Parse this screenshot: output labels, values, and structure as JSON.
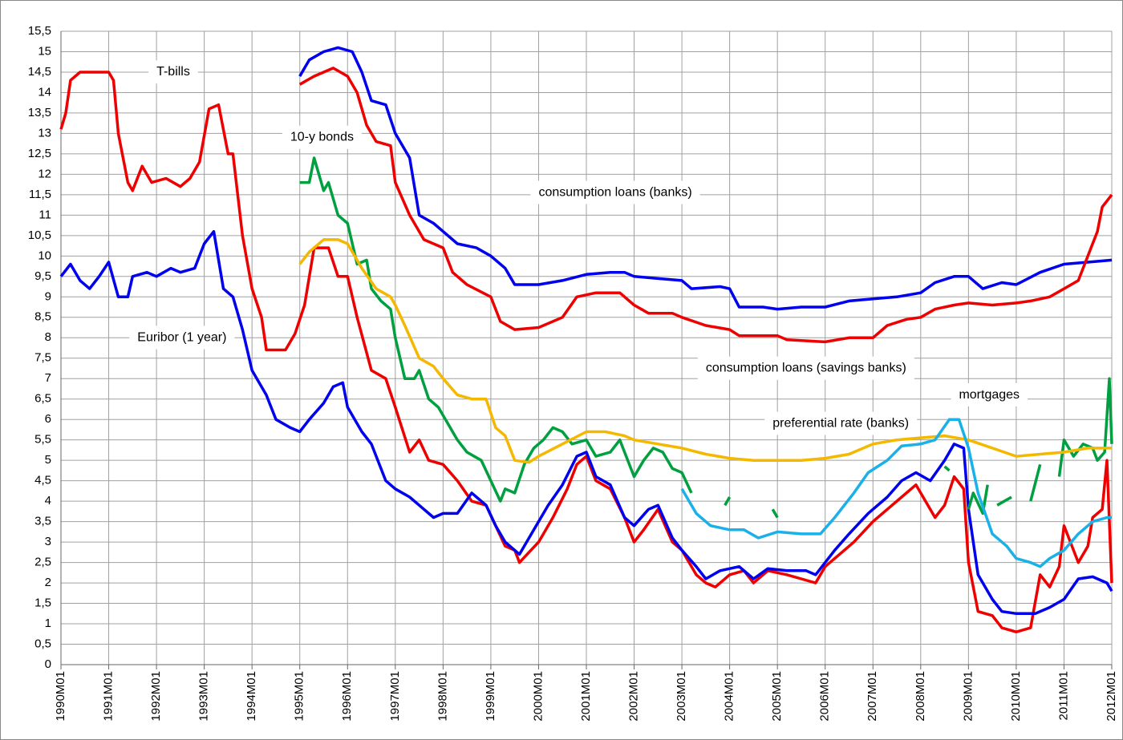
{
  "chart_data": {
    "type": "line",
    "grid": true,
    "ylim": [
      0,
      15.5
    ],
    "yticks": [
      0,
      {
        "value": 0.5,
        "label": "0,5"
      },
      1,
      {
        "value": 1.5,
        "label": "1,5"
      },
      2,
      {
        "value": 2.5,
        "label": "2,5"
      },
      3,
      {
        "value": 3.5,
        "label": "3,5"
      },
      4,
      {
        "value": 4.5,
        "label": "4,5"
      },
      5,
      {
        "value": 5.5,
        "label": "5,5"
      },
      6,
      {
        "value": 6.5,
        "label": "6,5"
      },
      7,
      {
        "value": 7.5,
        "label": "7,5"
      },
      8,
      {
        "value": 8.5,
        "label": "8,5"
      },
      9,
      {
        "value": 9.5,
        "label": "9,5"
      },
      10,
      {
        "value": 10.5,
        "label": "10,5"
      },
      11,
      {
        "value": 11.5,
        "label": "11,5"
      },
      12,
      {
        "value": 12.5,
        "label": "12,5"
      },
      13,
      {
        "value": 13.5,
        "label": "13,5"
      },
      14,
      {
        "value": 14.5,
        "label": "14,5"
      },
      15,
      {
        "value": 15.5,
        "label": "15,5"
      }
    ],
    "xlim": [
      1990,
      2012
    ],
    "xticks": [
      {
        "value": 1990,
        "label": "1990M01"
      },
      {
        "value": 1991,
        "label": "1991M01"
      },
      {
        "value": 1992,
        "label": "1992M01"
      },
      {
        "value": 1993,
        "label": "1993M01"
      },
      {
        "value": 1994,
        "label": "1994M01"
      },
      {
        "value": 1995,
        "label": "1995M01"
      },
      {
        "value": 1996,
        "label": "1996M01"
      },
      {
        "value": 1997,
        "label": "1997M01"
      },
      {
        "value": 1998,
        "label": "1998M01"
      },
      {
        "value": 1999,
        "label": "1999M01"
      },
      {
        "value": 2000,
        "label": "2000M01"
      },
      {
        "value": 2001,
        "label": "2001M01"
      },
      {
        "value": 2002,
        "label": "2002M01"
      },
      {
        "value": 2003,
        "label": "2003M01"
      },
      {
        "value": 2004,
        "label": "2004M01"
      },
      {
        "value": 2005,
        "label": "2005M01"
      },
      {
        "value": 2006,
        "label": "2006M01"
      },
      {
        "value": 2007,
        "label": "2007M01"
      },
      {
        "value": 2008,
        "label": "2008M01"
      },
      {
        "value": 2009,
        "label": "2009M01"
      },
      {
        "value": 2010,
        "label": "2010M01"
      },
      {
        "value": 2011,
        "label": "2011M01"
      },
      {
        "value": 2012,
        "label": "2012M01"
      }
    ],
    "annotations": [
      {
        "text": "T-bills",
        "x": 1992,
        "y": 14.5
      },
      {
        "text": "10-y bonds",
        "x": 1994.8,
        "y": 12.9
      },
      {
        "text": "consumption loans (banks)",
        "x": 2000,
        "y": 11.55
      },
      {
        "text": "Euribor (1 year)",
        "x": 1991.6,
        "y": 8.0
      },
      {
        "text": "consumption loans (savings banks)",
        "x": 2003.5,
        "y": 7.25
      },
      {
        "text": "mortgages",
        "x": 2008.8,
        "y": 6.6
      },
      {
        "text": "preferential rate (banks)",
        "x": 2004.9,
        "y": 5.9
      }
    ],
    "series": [
      {
        "color": "#0000ee",
        "x": [
          1995.0,
          1995.2,
          1995.5,
          1995.8,
          1996.1,
          1996.3,
          1996.5,
          1996.8,
          1997.0,
          1997.3,
          1997.5,
          1997.8,
          1998.0,
          1998.3,
          1998.7,
          1999.0,
          1999.3,
          1999.5,
          2000.0,
          2000.5,
          2001.0,
          2001.5,
          2001.8,
          2002.0,
          2002.5,
          2003.0,
          2003.2,
          2003.8,
          2004.0,
          2004.2,
          2004.7,
          2005.0,
          2005.5,
          2006.0,
          2006.5,
          2007.0,
          2007.5,
          2008.0,
          2008.3,
          2008.7,
          2009.0,
          2009.3,
          2009.7,
          2010.0,
          2010.5,
          2011.0,
          2011.5,
          2012.0
        ],
        "values": [
          14.4,
          14.8,
          15.0,
          15.1,
          15.0,
          14.5,
          13.8,
          13.7,
          13.0,
          12.4,
          11.0,
          10.8,
          10.6,
          10.3,
          10.2,
          10.0,
          9.7,
          9.3,
          9.3,
          9.4,
          9.55,
          9.6,
          9.6,
          9.5,
          9.45,
          9.4,
          9.2,
          9.25,
          9.2,
          8.75,
          8.75,
          8.7,
          8.75,
          8.75,
          8.9,
          8.95,
          9.0,
          9.1,
          9.35,
          9.5,
          9.5,
          9.2,
          9.35,
          9.3,
          9.6,
          9.8,
          9.85,
          9.9
        ]
      },
      {
        "color": "#ee0000",
        "x": [
          1995.0,
          1995.3,
          1995.7,
          1996.0,
          1996.2,
          1996.4,
          1996.6,
          1996.9,
          1997.0,
          1997.3,
          1997.6,
          1998.0,
          1998.2,
          1998.5,
          1999.0,
          1999.2,
          1999.5,
          2000.0,
          2000.5,
          2000.8,
          2001.2,
          2001.7,
          2002.0,
          2002.3,
          2002.8,
          2003.0,
          2003.5,
          2004.0,
          2004.2,
          2005.0,
          2005.2,
          2006.0,
          2006.5,
          2007.0,
          2007.3,
          2007.7,
          2008.0,
          2008.3,
          2008.7,
          2009.0,
          2009.5,
          2010.0,
          2010.3,
          2010.7,
          2011.0,
          2011.3,
          2011.5,
          2011.7,
          2011.8,
          2012.0
        ],
        "values": [
          14.2,
          14.4,
          14.6,
          14.4,
          14.0,
          13.2,
          12.8,
          12.7,
          11.8,
          11.0,
          10.4,
          10.2,
          9.6,
          9.3,
          9.0,
          8.4,
          8.2,
          8.25,
          8.5,
          9.0,
          9.1,
          9.1,
          8.8,
          8.6,
          8.6,
          8.5,
          8.3,
          8.2,
          8.05,
          8.05,
          7.95,
          7.9,
          8.0,
          8.0,
          8.3,
          8.45,
          8.5,
          8.7,
          8.8,
          8.85,
          8.8,
          8.85,
          8.9,
          9.0,
          9.2,
          9.4,
          10.0,
          10.6,
          11.2,
          11.5
        ]
      },
      {
        "color": "#ee0000",
        "x": [
          1990.0,
          1990.1,
          1990.2,
          1990.4,
          1990.8,
          1991.0,
          1991.1,
          1991.2,
          1991.4,
          1991.5,
          1991.7,
          1991.9,
          1992.2,
          1992.5,
          1992.7,
          1992.9,
          1993.1,
          1993.3,
          1993.5,
          1993.6,
          1993.8,
          1994.0,
          1994.2,
          1994.3,
          1994.7,
          1994.9,
          1995.1,
          1995.3,
          1995.6,
          1995.8,
          1996.0,
          1996.2,
          1996.5,
          1996.8,
          1997.0,
          1997.3,
          1997.5,
          1997.7,
          1998.0,
          1998.3,
          1998.6,
          1998.9,
          1999.1,
          1999.3,
          1999.5,
          1999.6,
          2000.0,
          2000.3,
          2000.6,
          2000.8,
          2001.0,
          2001.2,
          2001.5,
          2001.8,
          2002.0,
          2002.2,
          2002.5,
          2002.8,
          2003.0,
          2003.3,
          2003.5,
          2003.7,
          2004.0,
          2004.3,
          2004.5,
          2004.8,
          2005.2,
          2005.5,
          2005.8,
          2006.0,
          2006.3,
          2006.6,
          2007.0,
          2007.3,
          2007.6,
          2007.9,
          2008.1,
          2008.3,
          2008.5,
          2008.7,
          2008.9,
          2009.0,
          2009.2,
          2009.5,
          2009.7,
          2010.0,
          2010.3,
          2010.5,
          2010.7,
          2010.9,
          2011.0,
          2011.3,
          2011.5,
          2011.6,
          2011.8,
          2011.9,
          2012.0
        ],
        "values": [
          13.1,
          13.5,
          14.3,
          14.5,
          14.5,
          14.5,
          14.3,
          13.0,
          11.8,
          11.6,
          12.2,
          11.8,
          11.9,
          11.7,
          11.9,
          12.3,
          13.6,
          13.7,
          12.5,
          12.5,
          10.5,
          9.2,
          8.5,
          7.7,
          7.7,
          8.1,
          8.8,
          10.2,
          10.2,
          9.5,
          9.5,
          8.5,
          7.2,
          7.0,
          6.3,
          5.2,
          5.5,
          5.0,
          4.9,
          4.5,
          4.0,
          3.9,
          3.4,
          2.9,
          2.8,
          2.5,
          3.0,
          3.6,
          4.3,
          4.9,
          5.1,
          4.5,
          4.3,
          3.6,
          3.0,
          3.3,
          3.8,
          3.0,
          2.8,
          2.2,
          2.0,
          1.9,
          2.2,
          2.3,
          2.0,
          2.3,
          2.2,
          2.1,
          2.0,
          2.4,
          2.7,
          3.0,
          3.5,
          3.8,
          4.1,
          4.4,
          4.0,
          3.6,
          3.9,
          4.6,
          4.3,
          2.5,
          1.3,
          1.2,
          0.9,
          0.8,
          0.9,
          2.2,
          1.9,
          2.4,
          3.4,
          2.5,
          2.9,
          3.6,
          3.8,
          5.0,
          2.0
        ]
      },
      {
        "color": "#0000ee",
        "x": [
          1990.0,
          1990.2,
          1990.4,
          1990.6,
          1990.8,
          1991.0,
          1991.2,
          1991.4,
          1991.5,
          1991.8,
          1992.0,
          1992.3,
          1992.5,
          1992.8,
          1993.0,
          1993.2,
          1993.4,
          1993.6,
          1993.8,
          1994.0,
          1994.3,
          1994.5,
          1994.8,
          1995.0,
          1995.2,
          1995.5,
          1995.7,
          1995.9,
          1996.0,
          1996.3,
          1996.5,
          1996.8,
          1997.0,
          1997.3,
          1997.5,
          1997.8,
          1998.0,
          1998.3,
          1998.6,
          1998.9,
          1999.1,
          1999.3,
          1999.6,
          1999.9,
          2000.2,
          2000.5,
          2000.8,
          2001.0,
          2001.2,
          2001.5,
          2001.8,
          2002.0,
          2002.3,
          2002.5,
          2002.8,
          2003.0,
          2003.3,
          2003.5,
          2003.8,
          2004.2,
          2004.5,
          2004.8,
          2005.2,
          2005.6,
          2005.8,
          2006.2,
          2006.5,
          2006.9,
          2007.3,
          2007.6,
          2007.9,
          2008.2,
          2008.5,
          2008.7,
          2008.9,
          2009.0,
          2009.2,
          2009.5,
          2009.7,
          2010.0,
          2010.4,
          2010.7,
          2011.0,
          2011.3,
          2011.6,
          2011.9,
          2012.0
        ],
        "values": [
          9.5,
          9.8,
          9.4,
          9.2,
          9.5,
          9.85,
          9.0,
          9.0,
          9.5,
          9.6,
          9.5,
          9.7,
          9.6,
          9.7,
          10.3,
          10.6,
          9.2,
          9.0,
          8.2,
          7.2,
          6.6,
          6.0,
          5.8,
          5.7,
          6.0,
          6.4,
          6.8,
          6.9,
          6.3,
          5.7,
          5.4,
          4.5,
          4.3,
          4.1,
          3.9,
          3.6,
          3.7,
          3.7,
          4.2,
          3.9,
          3.4,
          3.0,
          2.7,
          3.3,
          3.9,
          4.4,
          5.1,
          5.2,
          4.6,
          4.4,
          3.6,
          3.4,
          3.8,
          3.9,
          3.1,
          2.8,
          2.4,
          2.1,
          2.3,
          2.4,
          2.1,
          2.35,
          2.3,
          2.3,
          2.2,
          2.8,
          3.2,
          3.7,
          4.1,
          4.5,
          4.7,
          4.5,
          5.0,
          5.4,
          5.3,
          3.8,
          2.2,
          1.6,
          1.3,
          1.25,
          1.25,
          1.4,
          1.6,
          2.1,
          2.15,
          2.0,
          1.8
        ]
      },
      {
        "color": "#00a040",
        "x": [
          1995.0,
          1995.2,
          1995.3,
          1995.5,
          1995.6,
          1995.8,
          1996.0,
          1996.2,
          1996.4,
          1996.5,
          1996.7,
          1996.9,
          1997.0,
          1997.2,
          1997.4,
          1997.5,
          1997.7,
          1997.9,
          1998.1,
          1998.3,
          1998.5,
          1998.8,
          1999.0,
          1999.2,
          1999.3,
          1999.5,
          1999.7,
          1999.9,
          2000.1,
          2000.3,
          2000.5,
          2000.7,
          2001.0,
          2001.2,
          2001.5,
          2001.7,
          2002.0,
          2002.2,
          2002.4,
          2002.6,
          2002.8,
          2003.0,
          2003.2,
          null,
          2003.9,
          2004.0,
          null,
          2004.9,
          2005.0,
          null,
          2008.5,
          2008.6,
          null,
          2009.0,
          2009.1,
          2009.3,
          2009.4,
          null,
          2009.6,
          2009.9,
          null,
          2010.3,
          2010.5,
          null,
          2010.9,
          2011.0,
          2011.2,
          2011.4,
          2011.6,
          2011.7,
          2011.85,
          2011.95,
          2012.0
        ],
        "values": [
          11.8,
          11.8,
          12.4,
          11.6,
          11.8,
          11.0,
          10.8,
          9.8,
          9.9,
          9.2,
          8.9,
          8.7,
          8.0,
          7.0,
          7.0,
          7.2,
          6.5,
          6.3,
          5.9,
          5.5,
          5.2,
          5.0,
          4.5,
          4.0,
          4.3,
          4.2,
          4.9,
          5.3,
          5.5,
          5.8,
          5.7,
          5.4,
          5.5,
          5.1,
          5.2,
          5.5,
          4.6,
          5.0,
          5.3,
          5.2,
          4.8,
          4.7,
          4.2,
          null,
          3.9,
          4.1,
          null,
          3.8,
          3.6,
          null,
          4.85,
          4.75,
          null,
          3.8,
          4.2,
          3.7,
          4.4,
          null,
          3.9,
          4.1,
          null,
          4.0,
          4.9,
          null,
          4.6,
          5.5,
          5.1,
          5.4,
          5.3,
          5.0,
          5.2,
          7.0,
          5.4
        ]
      },
      {
        "color": "#f5b800",
        "x": [
          1995.0,
          1995.2,
          1995.5,
          1995.8,
          1996.0,
          1996.3,
          1996.6,
          1996.9,
          1997.0,
          1997.2,
          1997.5,
          1997.8,
          1998.0,
          1998.3,
          1998.6,
          1998.9,
          1999.1,
          1999.3,
          1999.5,
          1999.8,
          2000.0,
          2000.5,
          2001.0,
          2001.4,
          2001.8,
          2002.0,
          2002.5,
          2003.0,
          2003.5,
          2004.0,
          2004.5,
          2005.0,
          2005.5,
          2006.0,
          2006.5,
          2007.0,
          2007.5,
          2008.0,
          2008.5,
          2009.0,
          2009.5,
          2010.0,
          2010.5,
          2011.0,
          2011.5,
          2012.0
        ],
        "values": [
          9.8,
          10.1,
          10.4,
          10.4,
          10.3,
          9.7,
          9.2,
          9.0,
          8.8,
          8.3,
          7.5,
          7.3,
          7.0,
          6.6,
          6.5,
          6.5,
          5.8,
          5.6,
          5.0,
          4.95,
          5.1,
          5.4,
          5.7,
          5.7,
          5.6,
          5.5,
          5.4,
          5.3,
          5.15,
          5.05,
          5.0,
          5.0,
          5.0,
          5.05,
          5.15,
          5.4,
          5.5,
          5.55,
          5.6,
          5.5,
          5.3,
          5.1,
          5.15,
          5.2,
          5.3,
          5.3
        ]
      },
      {
        "color": "#1ab0e8",
        "x": [
          2003.0,
          2003.3,
          2003.6,
          2004.0,
          2004.3,
          2004.6,
          2005.0,
          2005.5,
          2005.9,
          2006.2,
          2006.6,
          2006.9,
          2007.3,
          2007.6,
          2008.0,
          2008.3,
          2008.6,
          2008.8,
          2009.0,
          2009.2,
          2009.5,
          2009.8,
          2010.0,
          2010.3,
          2010.5,
          2010.7,
          2011.0,
          2011.3,
          2011.6,
          2011.9,
          2012.0
        ],
        "values": [
          4.3,
          3.7,
          3.4,
          3.3,
          3.3,
          3.1,
          3.25,
          3.2,
          3.2,
          3.6,
          4.2,
          4.7,
          5.0,
          5.35,
          5.4,
          5.5,
          6.0,
          6.0,
          5.3,
          4.2,
          3.2,
          2.9,
          2.6,
          2.5,
          2.4,
          2.6,
          2.8,
          3.2,
          3.5,
          3.6,
          3.6
        ]
      }
    ]
  }
}
